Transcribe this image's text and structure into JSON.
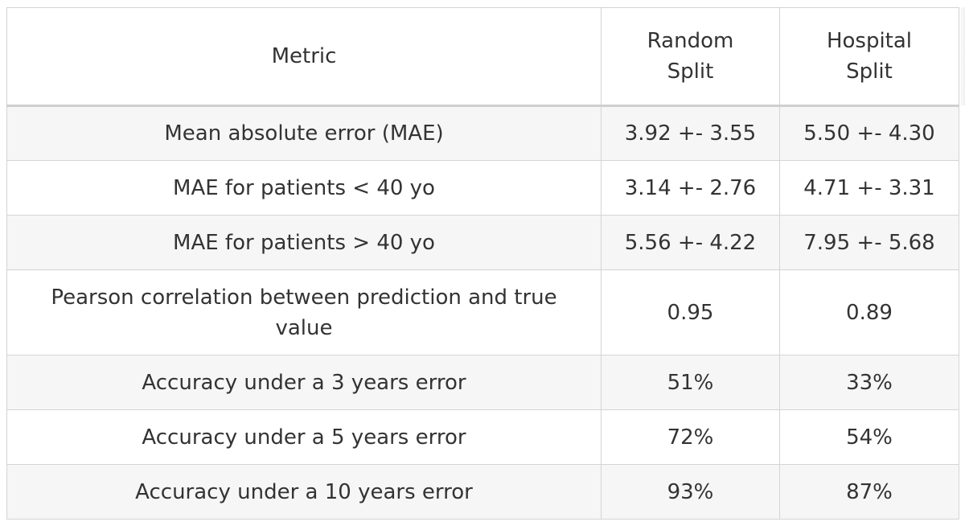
{
  "table": {
    "headers": [
      "Metric",
      "Random Split",
      "Hospital Split"
    ],
    "rows": [
      [
        "Mean absolute error (MAE)",
        "3.92 +- 3.55",
        "5.50 +- 4.30"
      ],
      [
        "MAE for patients < 40 yo",
        "3.14 +- 2.76",
        "4.71 +- 3.31"
      ],
      [
        "MAE for patients > 40 yo",
        "5.56 +- 4.22",
        "7.95 +- 5.68"
      ],
      [
        "Pearson correlation between prediction and true value",
        "0.95",
        "0.89"
      ],
      [
        "Accuracy under a 3 years error",
        "51%",
        "33%"
      ],
      [
        "Accuracy under a 5 years error",
        "72%",
        "54%"
      ],
      [
        "Accuracy under a 10 years error",
        "93%",
        "87%"
      ]
    ]
  }
}
